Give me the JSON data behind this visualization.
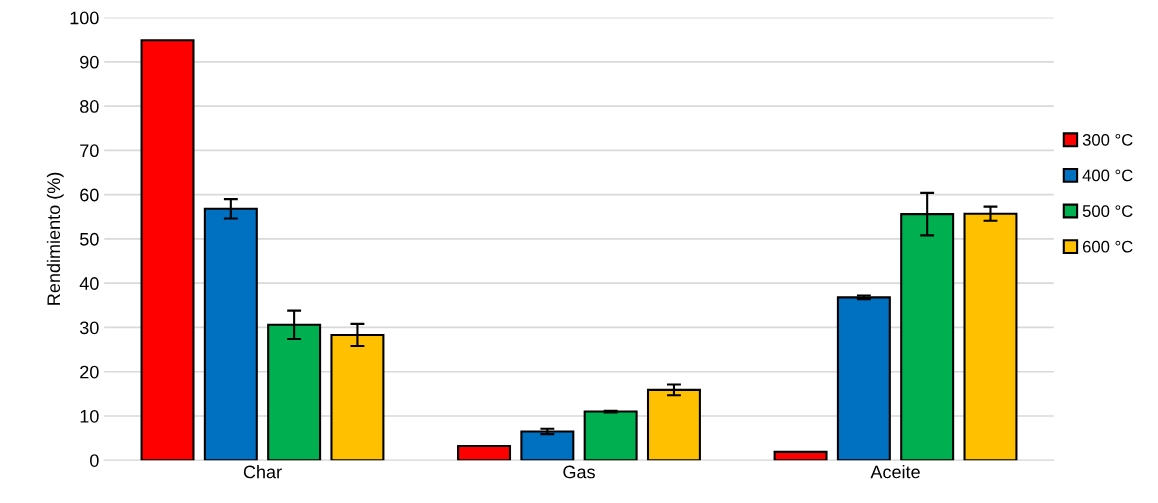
{
  "chart_data": {
    "type": "bar",
    "ylabel": "Rendimiento (%)",
    "categories": [
      "Char",
      "Gas",
      "Aceite"
    ],
    "series": [
      {
        "name": "300 °C",
        "color": "#ff0000",
        "values": [
          94.9,
          3.2,
          1.9
        ]
      },
      {
        "name": "400 °C",
        "color": "#0070c0",
        "values": [
          56.8,
          6.5,
          36.8
        ],
        "errors": [
          2.2,
          0.6,
          0.4
        ]
      },
      {
        "name": "500 °C",
        "color": "#00b050",
        "values": [
          30.6,
          11.0,
          55.6
        ],
        "errors": [
          3.2,
          0.2,
          4.8
        ]
      },
      {
        "name": "600 °C",
        "color": "#ffc000",
        "values": [
          28.3,
          15.9,
          55.7
        ],
        "errors": [
          2.5,
          1.2,
          1.6
        ]
      }
    ],
    "ylim": [
      0,
      100
    ],
    "yticks": [
      0,
      10,
      20,
      30,
      40,
      50,
      60,
      70,
      80,
      90,
      100
    ],
    "grid": "y",
    "legend": "right"
  }
}
